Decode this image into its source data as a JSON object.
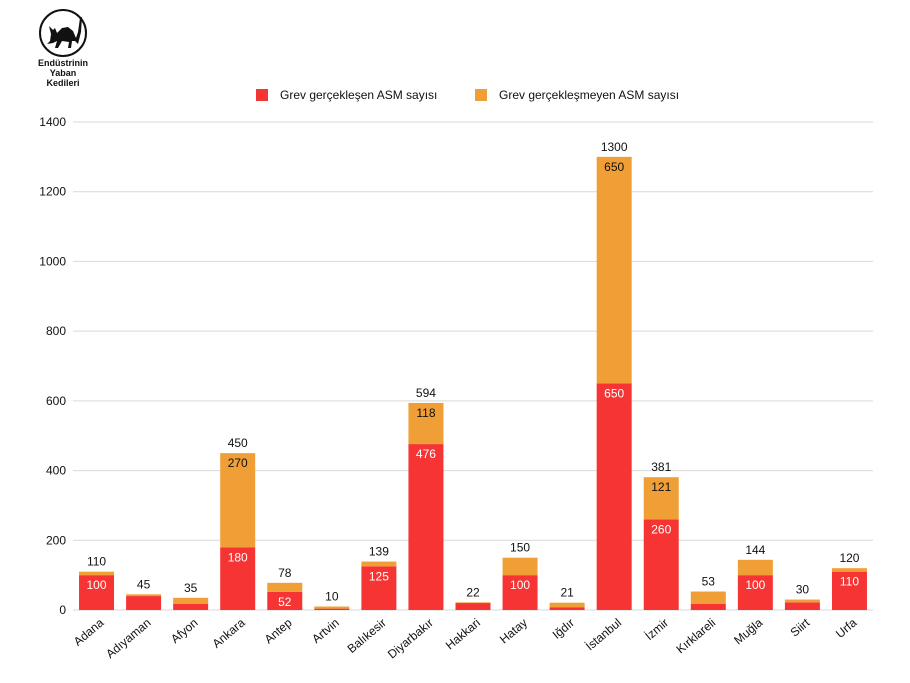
{
  "logo": {
    "lines": [
      "Endüstrinin",
      "Yaban",
      "Kedileri"
    ]
  },
  "colors": {
    "series1": "#f63434",
    "series2": "#ef9f35",
    "grid": "#d9d9d9",
    "seg_label_light": "#ffffff",
    "seg_label_dark": "#111111"
  },
  "chart_data": {
    "type": "bar",
    "stacked": true,
    "title": "",
    "xlabel": "",
    "ylabel": "",
    "ylim": [
      0,
      1400
    ],
    "yticks": [
      0,
      200,
      400,
      600,
      800,
      1000,
      1200,
      1400
    ],
    "grid": true,
    "legend_position": "top-center",
    "categories": [
      "Adana",
      "Adıyaman",
      "Afyon",
      "Ankara",
      "Antep",
      "Artvin",
      "Balıkesir",
      "Diyarbakır",
      "Hakkari",
      "Hatay",
      "Iğdır",
      "İstanbul",
      "İzmir",
      "Kırklareli",
      "Muğla",
      "Siirt",
      "Urfa"
    ],
    "totals": [
      110,
      45,
      35,
      450,
      78,
      10,
      139,
      594,
      22,
      150,
      21,
      1300,
      381,
      53,
      144,
      30,
      120
    ],
    "series": [
      {
        "name": "Grev gerçekleşen ASM sayısı",
        "values": [
          100,
          40,
          18,
          180,
          52,
          4,
          125,
          476,
          20,
          100,
          8,
          650,
          260,
          18,
          100,
          22,
          110
        ],
        "labels": [
          "100",
          "",
          "",
          "180",
          "52",
          "",
          "125",
          "476",
          "",
          "100",
          "",
          "650",
          "260",
          "",
          "100",
          "",
          "110"
        ]
      },
      {
        "name": "Grev gerçekleşmeyen ASM sayısı",
        "values": [
          10,
          5,
          17,
          270,
          26,
          6,
          14,
          118,
          2,
          50,
          13,
          650,
          121,
          35,
          44,
          8,
          10
        ],
        "labels": [
          "",
          "",
          "",
          "270",
          "",
          "",
          "",
          "118",
          "",
          "",
          "",
          "650",
          "121",
          "",
          "",
          "",
          ""
        ]
      }
    ]
  }
}
